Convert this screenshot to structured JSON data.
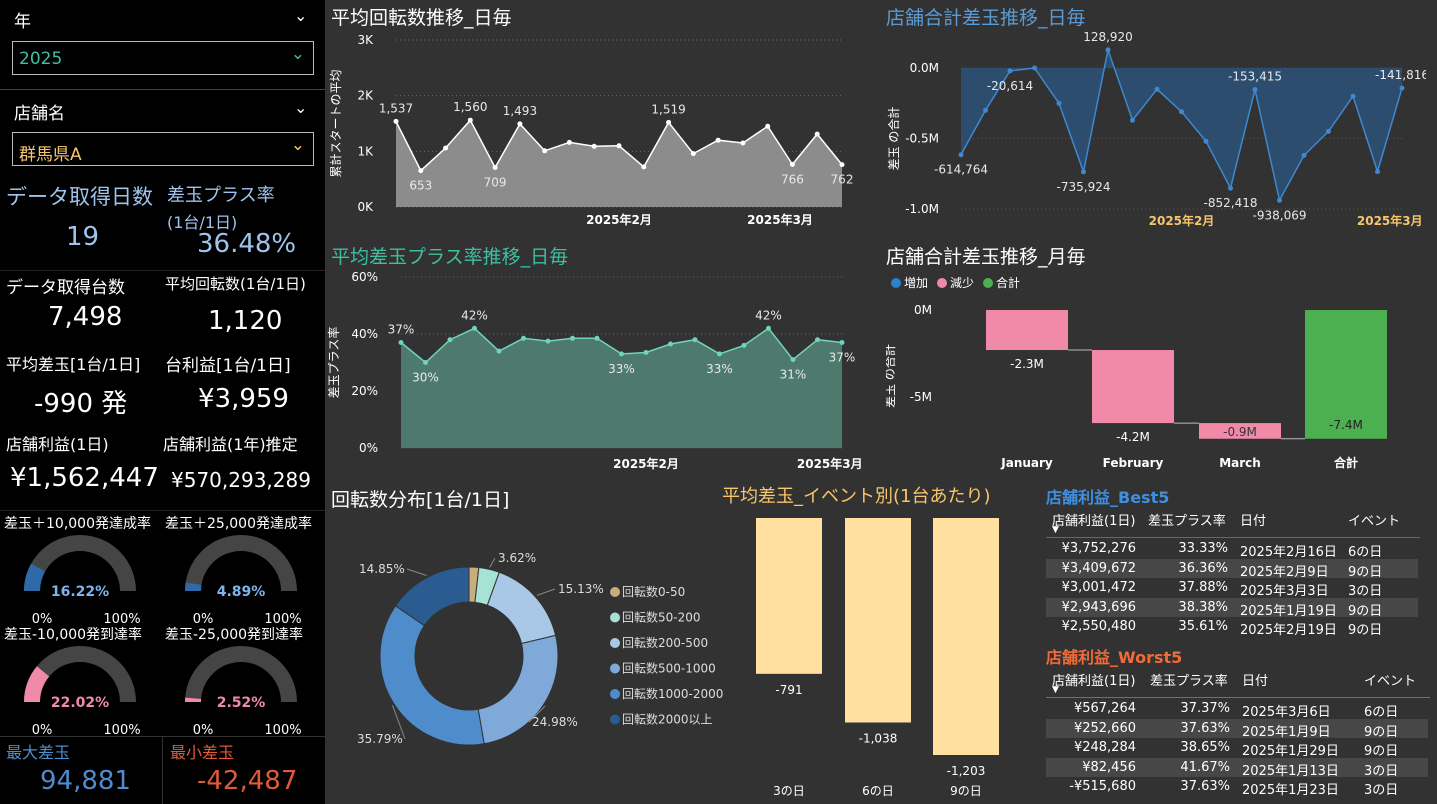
{
  "left": {
    "year_label": "年",
    "year_value": "2025",
    "store_label": "店舗名",
    "store_value": "群馬県A",
    "kpis": {
      "days_label": "データ取得日数",
      "days_value": "19",
      "plus_rate_label": "差玉プラス率",
      "plus_rate_sub": "(1台/1日)",
      "plus_rate_value": "36.48%",
      "units_label": "データ取得台数",
      "units_value": "7,498",
      "avg_spins_label": "平均回転数(1台/1日)",
      "avg_spins_value": "1,120",
      "avg_diff_label": "平均差玉[1台/1日]",
      "avg_diff_value": "-990 発",
      "unit_profit_label": "台利益[1台/1日]",
      "unit_profit_value": "¥3,959",
      "store_profit_label": "店舗利益(1日)",
      "store_profit_value": "¥1,562,447",
      "store_profit_year_label": "店舗利益(1年)推定",
      "store_profit_year_value": "¥570,293,289",
      "max_label": "最大差玉",
      "max_value": "94,881",
      "min_label": "最小差玉",
      "min_value": "-42,487"
    },
    "gauges": [
      {
        "title": "差玉＋10,000発達成率",
        "value": "16.22%",
        "pct": 0.1622,
        "color": "#2f6aa8",
        "text_color": "#7fb3ea",
        "min": "0%",
        "max": "100%"
      },
      {
        "title": "差玉＋25,000発達成率",
        "value": "4.89%",
        "pct": 0.0489,
        "color": "#2f6aa8",
        "text_color": "#7fb3ea",
        "min": "0%",
        "max": "100%"
      },
      {
        "title": "差玉-10,000発到達率",
        "value": "22.02%",
        "pct": 0.2202,
        "color": "#f08aa8",
        "text_color": "#f08aa8",
        "min": "0%",
        "max": "100%"
      },
      {
        "title": "差玉-25,000発到達率",
        "value": "2.52%",
        "pct": 0.0252,
        "color": "#f08aa8",
        "text_color": "#f08aa8",
        "min": "0%",
        "max": "100%"
      }
    ]
  },
  "titles": {
    "spins_daily": "平均回転数推移_日毎",
    "diff_daily": "店舗合計差玉推移_日毎",
    "plus_rate_daily": "平均差玉プラス率推移_日毎",
    "diff_monthly": "店舗合計差玉推移_月毎",
    "spin_dist": "回転数分布[1台/1日]",
    "event_avg": "平均差玉_イベント別(1台あたり)",
    "best5": "店舗利益_Best5",
    "worst5": "店舗利益_Worst5"
  },
  "colors": {
    "accent_blue": "#5b9bd5",
    "accent_teal": "#3fbfa0",
    "accent_yellow": "#f7c56b",
    "best": "#3f8fe0",
    "worst": "#f06a3a"
  },
  "chart_data": [
    {
      "type": "area",
      "name": "spins_daily",
      "ylabel": "累計スタートの平均",
      "yticks": [
        "0K",
        "1K",
        "2K",
        "3K"
      ],
      "ylim": [
        0,
        3000
      ],
      "xticks": [
        "2025年2月",
        "2025年3月"
      ],
      "values": [
        1537,
        653,
        1060,
        1560,
        709,
        1493,
        1010,
        1160,
        1090,
        1100,
        720,
        1519,
        960,
        1200,
        1150,
        1450,
        766,
        1310,
        762
      ],
      "labels": {
        "0": "1,537",
        "1": "653",
        "3": "1,560",
        "4": "709",
        "5": "1,493",
        "11": "1,519",
        "16": "766",
        "18": "762"
      }
    },
    {
      "type": "area",
      "name": "diff_daily",
      "ylabel": "差玉 の合計",
      "yticks": [
        "0.0M",
        "-0.5M",
        "-1.0M"
      ],
      "ylim": [
        -1000000,
        0
      ],
      "xticks": [
        "2025年2月",
        "2025年3月"
      ],
      "values": [
        -614764,
        -300000,
        -20614,
        0,
        -250000,
        -735924,
        128920,
        -370000,
        -150000,
        -310000,
        -520000,
        -852418,
        -153415,
        -938069,
        -620000,
        -450000,
        -200000,
        -735000,
        -141816
      ],
      "labels": {
        "0": "-614,764",
        "2": "-20,614",
        "5": "-735,924",
        "6": "128,920",
        "11": "-852,418",
        "12": "-153,415",
        "13": "-938,069",
        "18": "-141,816"
      }
    },
    {
      "type": "area",
      "name": "plus_rate_daily",
      "ylabel": "差玉プラス率",
      "yticks": [
        "0%",
        "20%",
        "40%",
        "60%"
      ],
      "ylim": [
        0,
        60
      ],
      "xticks": [
        "2025年2月",
        "2025年3月"
      ],
      "values": [
        37,
        30,
        38,
        42,
        34,
        38.5,
        37.5,
        38.5,
        38.5,
        33,
        33.5,
        36.5,
        38,
        33,
        36,
        42,
        31,
        38,
        37
      ],
      "labels": {
        "0": "37%",
        "1": "30%",
        "3": "42%",
        "9": "33%",
        "13": "33%",
        "15": "42%",
        "16": "31%",
        "18": "37%"
      }
    },
    {
      "type": "bar",
      "name": "diff_monthly",
      "ylabel": "差玉 の合計",
      "legend": [
        "増加",
        "減少",
        "合計"
      ],
      "legend_colors": [
        "#2f7fd0",
        "#f08aa8",
        "#4caf50"
      ],
      "yticks": [
        "0M",
        "-5M"
      ],
      "categories": [
        "January",
        "February",
        "March",
        "合計"
      ],
      "values": [
        -2.3,
        -4.2,
        -0.9,
        -7.4
      ],
      "value_labels": [
        "-2.3M",
        "-4.2M",
        "-0.9M",
        "-7.4M"
      ]
    },
    {
      "type": "pie",
      "name": "spin_dist",
      "categories": [
        "回転数0-50",
        "回転数50-200",
        "回転数200-500",
        "回転数500-1000",
        "回転数1000-2000",
        "回転数2000以上"
      ],
      "values": [
        1.69,
        3.62,
        15.13,
        24.98,
        35.79,
        14.85
      ],
      "colors": [
        "#c8ae7d",
        "#a6e3d4",
        "#a9c8e8",
        "#7fa9d8",
        "#4f8ccc",
        "#2a5c92"
      ],
      "labels": [
        "",
        "3.62%",
        "15.13%",
        "24.98%",
        "35.79%",
        "14.85%"
      ]
    },
    {
      "type": "bar",
      "name": "event_avg",
      "categories": [
        "3の日",
        "6の日",
        "9の日"
      ],
      "values": [
        -791,
        -1038,
        -1203
      ],
      "value_labels": [
        "-791",
        "-1,038",
        "-1,203"
      ]
    }
  ],
  "best5": {
    "headers": [
      "店舗利益(1日)",
      "差玉プラス率",
      "日付",
      "イベント"
    ],
    "rows": [
      [
        "¥3,752,276",
        "33.33%",
        "2025年2月16日",
        "6の日"
      ],
      [
        "¥3,409,672",
        "36.36%",
        "2025年2月9日",
        "9の日"
      ],
      [
        "¥3,001,472",
        "37.88%",
        "2025年3月3日",
        "3の日"
      ],
      [
        "¥2,943,696",
        "38.38%",
        "2025年1月19日",
        "9の日"
      ],
      [
        "¥2,550,480",
        "35.61%",
        "2025年2月19日",
        "9の日"
      ]
    ]
  },
  "worst5": {
    "headers": [
      "店舗利益(1日)",
      "差玉プラス率",
      "日付",
      "イベント"
    ],
    "rows": [
      [
        "¥567,264",
        "37.37%",
        "2025年3月6日",
        "6の日"
      ],
      [
        "¥252,660",
        "37.63%",
        "2025年1月9日",
        "9の日"
      ],
      [
        "¥248,284",
        "38.65%",
        "2025年1月29日",
        "9の日"
      ],
      [
        "¥82,456",
        "41.67%",
        "2025年1月13日",
        "3の日"
      ],
      [
        "-¥515,680",
        "37.63%",
        "2025年1月23日",
        "3の日"
      ]
    ]
  }
}
